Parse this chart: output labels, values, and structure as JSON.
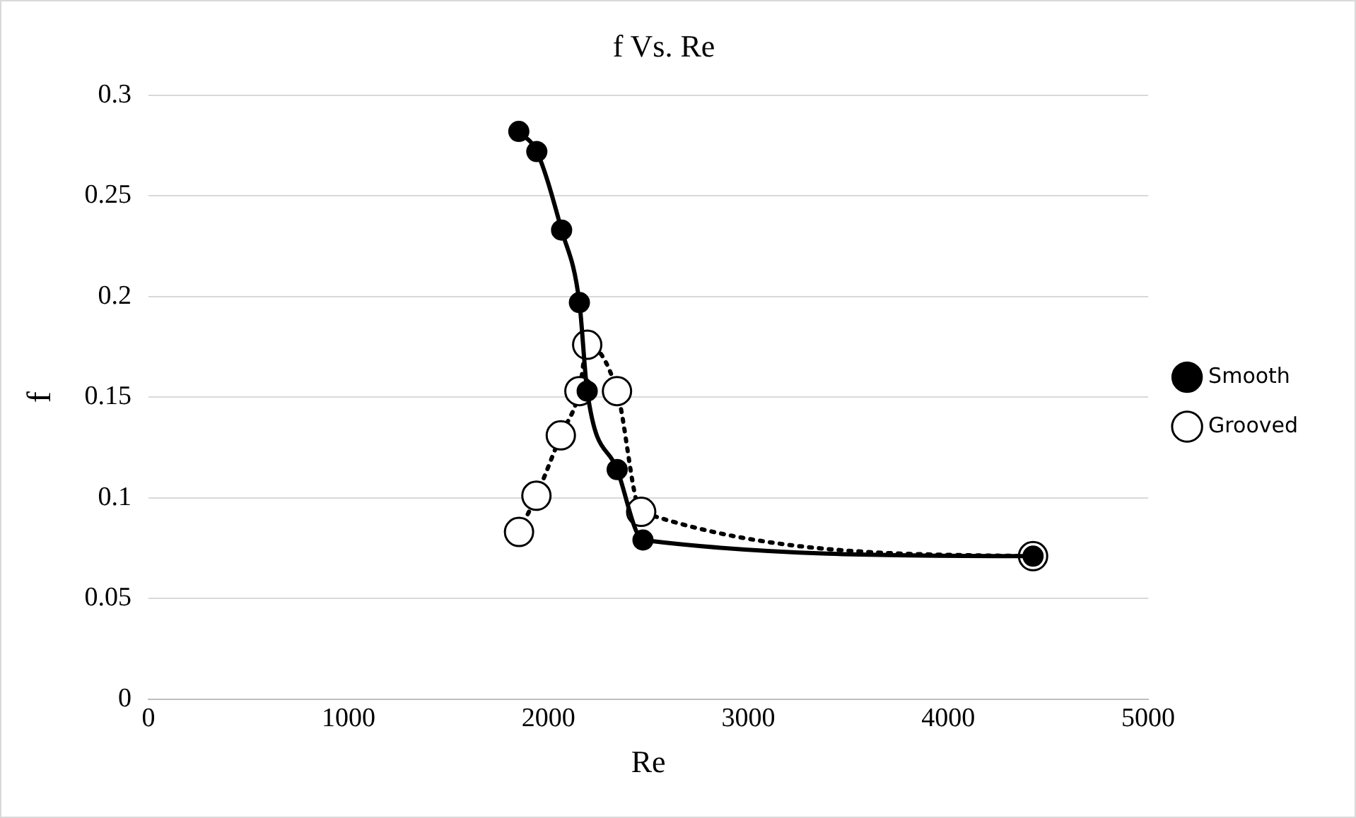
{
  "chart_data": {
    "type": "line",
    "title": "f Vs. Re",
    "xlabel": "Re",
    "ylabel": "f",
    "series": [
      {
        "name": "Smooth",
        "color": "#000000",
        "x": [
          1852,
          1942,
          2066,
          2155,
          2194,
          2344,
          2473,
          4424
        ],
        "values": [
          0.282,
          0.272,
          0.233,
          0.197,
          0.153,
          0.114,
          0.079,
          0.071
        ],
        "line_style": "solid"
      },
      {
        "name": "Grooved",
        "color": "#000000",
        "x": [
          1853,
          1940,
          2062,
          2155,
          2194,
          2343,
          2464,
          4424
        ],
        "values": [
          0.083,
          0.101,
          0.131,
          0.153,
          0.176,
          0.153,
          0.093,
          0.071
        ],
        "line_style": "dotted"
      }
    ],
    "xlim": [
      0,
      5000
    ],
    "xticks": [
      0,
      1000,
      2000,
      3000,
      4000,
      5000
    ],
    "ylim": [
      0,
      0.3
    ],
    "yticks": [
      0,
      0.05,
      0.1,
      0.15,
      0.2,
      0.25,
      0.3
    ],
    "grid": "y",
    "legend": "right",
    "marker": "circle"
  }
}
